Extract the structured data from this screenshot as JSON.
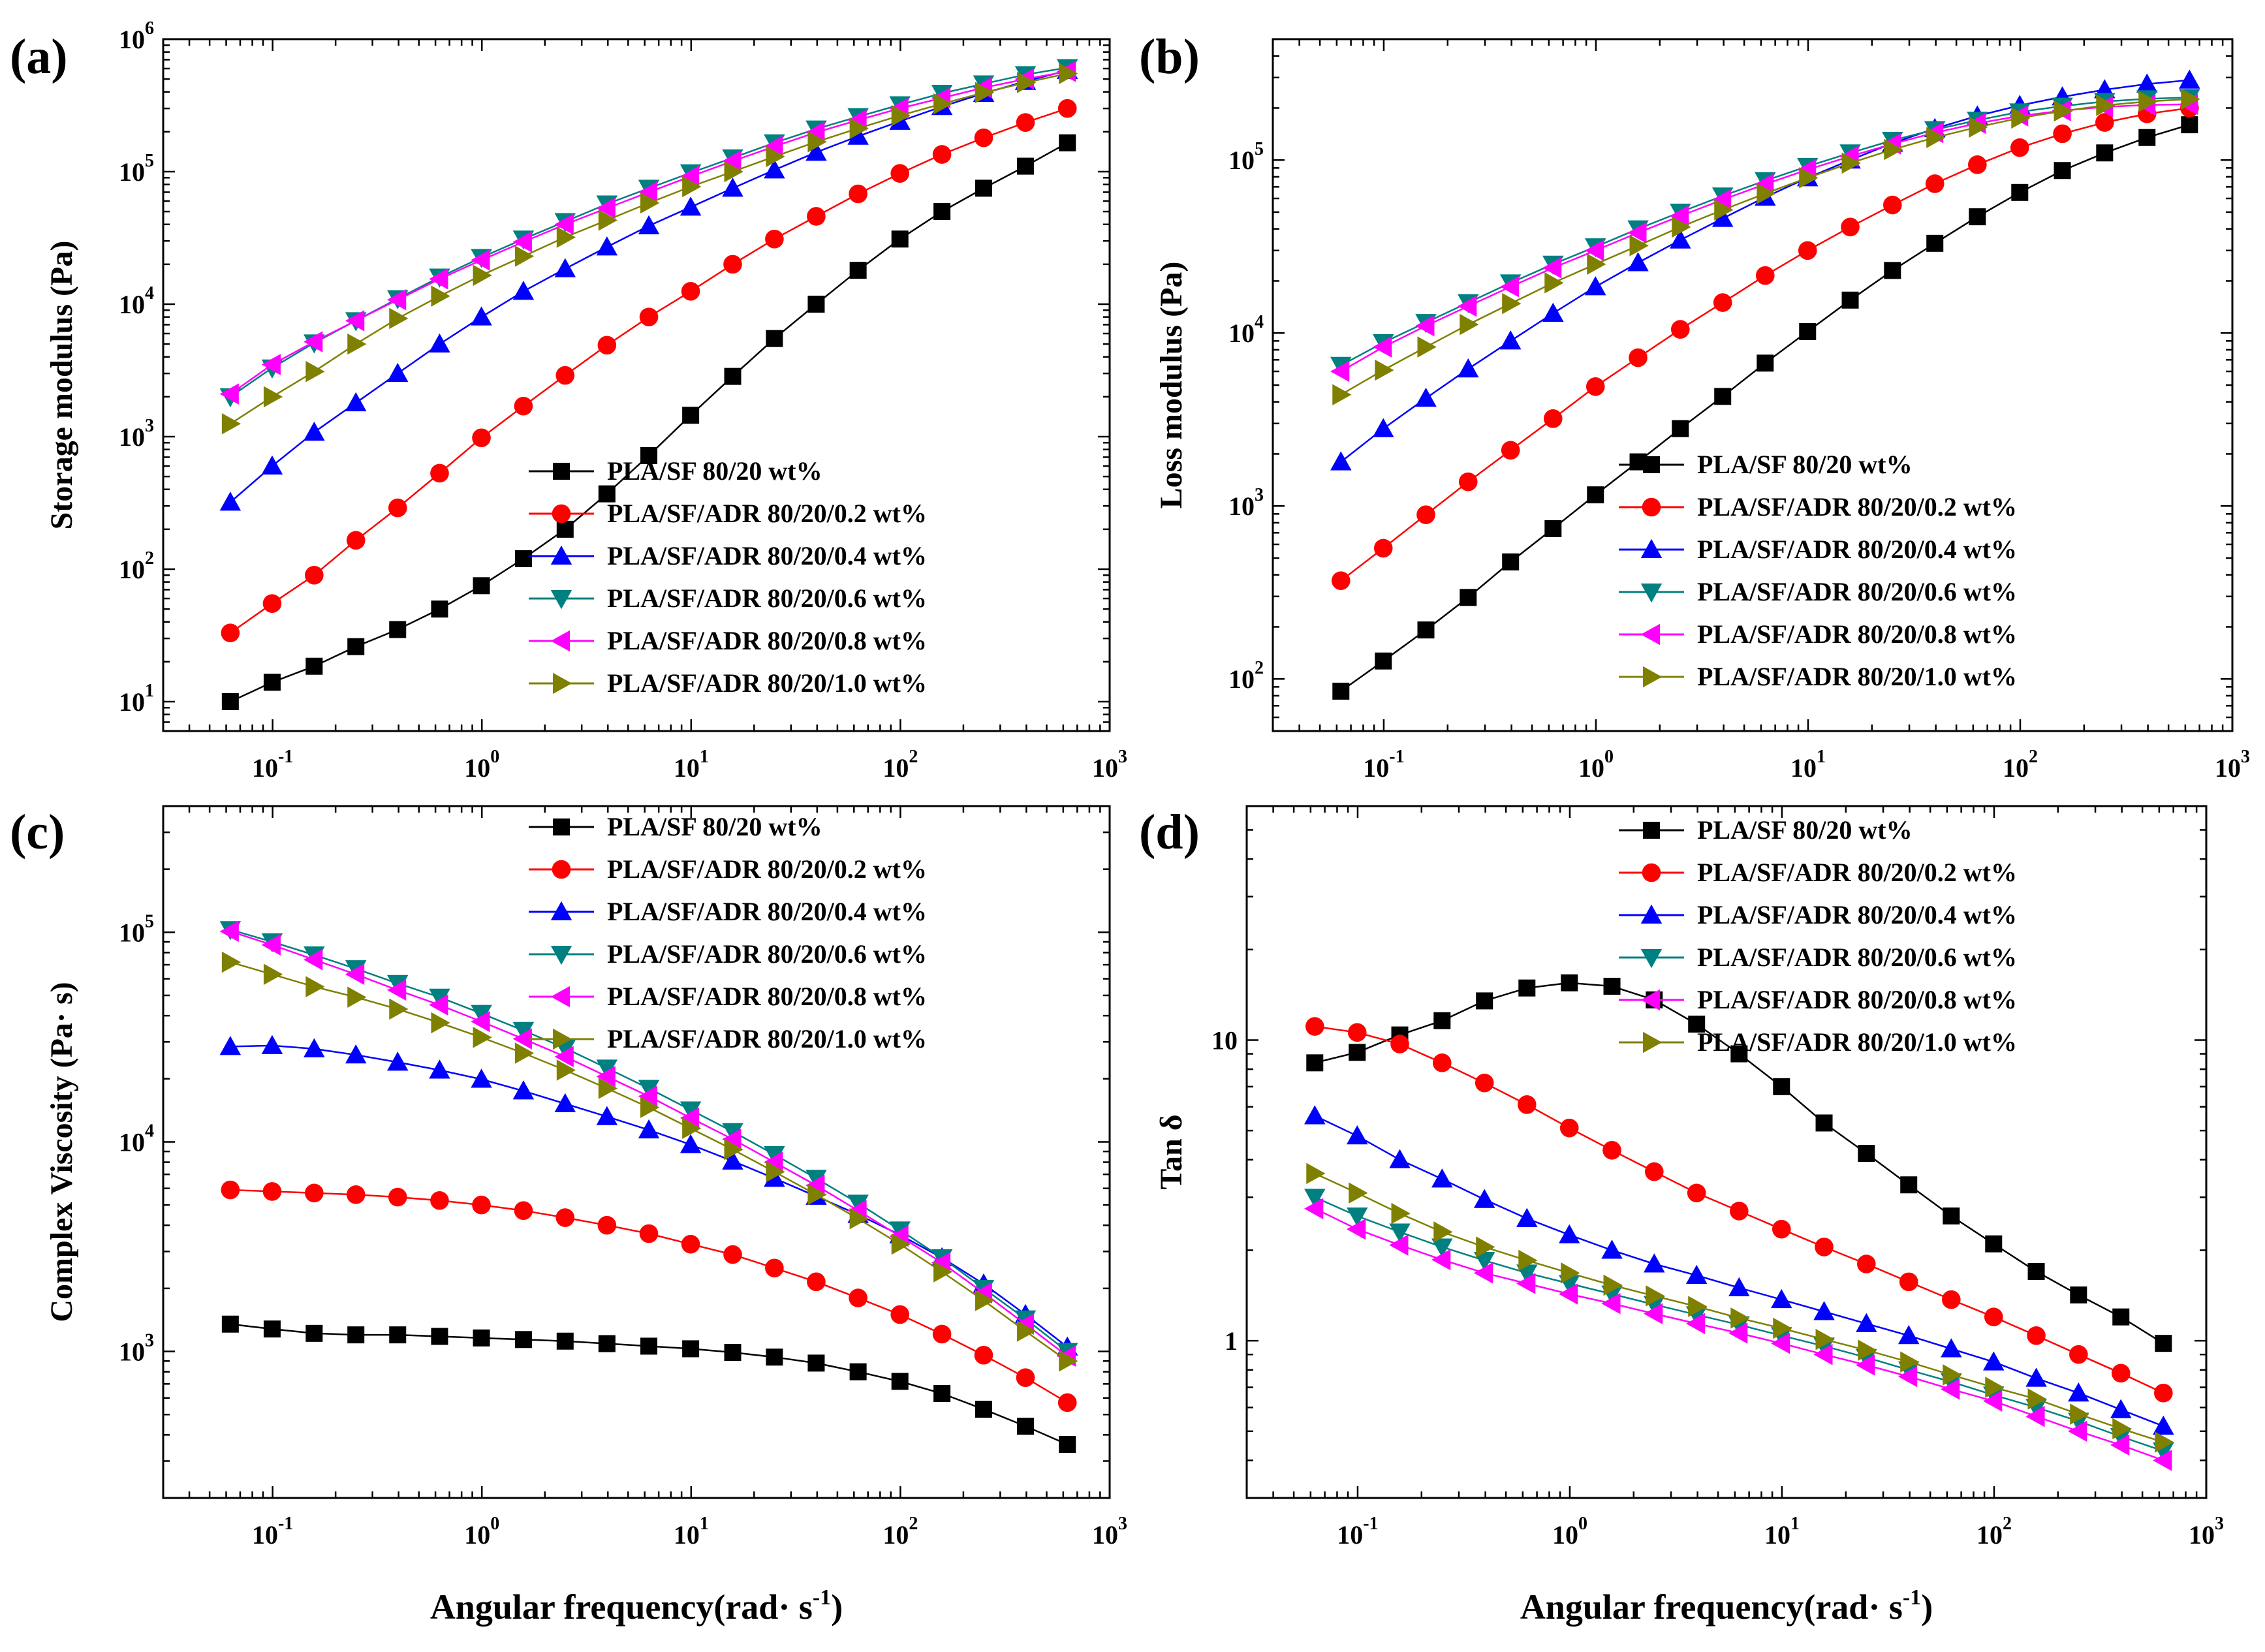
{
  "series_styles": [
    {
      "name": "PLA/SF 80/20 wt%",
      "color": "#000000",
      "marker": "square"
    },
    {
      "name": "PLA/SF/ADR 80/20/0.2 wt%",
      "color": "#ff0000",
      "marker": "circle"
    },
    {
      "name": "PLA/SF/ADR 80/20/0.4 wt%",
      "color": "#0000ff",
      "marker": "triangle-up"
    },
    {
      "name": "PLA/SF/ADR 80/20/0.6 wt%",
      "color": "#008080",
      "marker": "triangle-down"
    },
    {
      "name": "PLA/SF/ADR 80/20/0.8 wt%",
      "color": "#ff00ff",
      "marker": "triangle-left"
    },
    {
      "name": "PLA/SF/ADR 80/20/1.0 wt%",
      "color": "#808000",
      "marker": "triangle-right"
    }
  ],
  "chart_data": [
    {
      "panel": "(a)",
      "type": "line",
      "scale": "log-log",
      "xlabel": "",
      "ylabel": "Storage modulus (Pa)",
      "xlim": [
        0.03,
        1000
      ],
      "ylim": [
        6,
        1000000
      ],
      "x_ticks": [
        "10-1",
        "100",
        "101",
        "102",
        "103"
      ],
      "y_ticks": [
        "101",
        "102",
        "103",
        "104",
        "105",
        "106"
      ],
      "legend_position": "bottom-right",
      "x": [
        0.0628,
        0.0995,
        0.158,
        0.25,
        0.396,
        0.628,
        0.995,
        1.58,
        2.5,
        3.96,
        6.28,
        9.95,
        15.8,
        25,
        39.6,
        62.8,
        99.5,
        158,
        250,
        396,
        628
      ],
      "series": [
        {
          "name": "PLA/SF 80/20 wt%",
          "values": [
            10,
            14,
            18.5,
            26,
            35,
            50,
            75,
            120,
            200,
            370,
            720,
            1450,
            2850,
            5500,
            10000,
            18000,
            31000,
            50000,
            75000,
            110000,
            165000
          ]
        },
        {
          "name": "PLA/SF/ADR 80/20/0.2 wt%",
          "values": [
            33,
            55,
            90,
            165,
            290,
            530,
            980,
            1700,
            2900,
            4900,
            8000,
            12500,
            20000,
            31000,
            46000,
            68000,
            97000,
            135000,
            180000,
            235000,
            300000
          ]
        },
        {
          "name": "PLA/SF/ADR 80/20/0.4 wt%",
          "values": [
            320,
            600,
            1080,
            1800,
            3000,
            5000,
            8000,
            12500,
            18500,
            27000,
            39000,
            54000,
            75000,
            103000,
            140000,
            185000,
            240000,
            310000,
            390000,
            480000,
            580000
          ]
        },
        {
          "name": "PLA/SF/ADR 80/20/0.6 wt%",
          "values": [
            2000,
            3300,
            5100,
            7500,
            11000,
            16000,
            22500,
            31000,
            42000,
            57000,
            75000,
            98000,
            127000,
            165000,
            210000,
            260000,
            320000,
            390000,
            460000,
            540000,
            610000
          ]
        },
        {
          "name": "PLA/SF/ADR 80/20/0.8 wt%",
          "values": [
            2100,
            3500,
            5200,
            7500,
            10800,
            15500,
            21500,
            29500,
            40000,
            53000,
            70000,
            92000,
            120000,
            155000,
            198000,
            245000,
            300000,
            360000,
            430000,
            500000,
            570000
          ]
        },
        {
          "name": "PLA/SF/ADR 80/20/1.0 wt%",
          "values": [
            1250,
            2000,
            3100,
            5000,
            7800,
            11500,
            16500,
            23000,
            32000,
            43000,
            58000,
            77000,
            100000,
            130000,
            168000,
            212000,
            265000,
            325000,
            395000,
            470000,
            550000
          ]
        }
      ]
    },
    {
      "panel": "(b)",
      "type": "line",
      "scale": "log-log",
      "xlabel": "",
      "ylabel": "Loss modulus (Pa)",
      "xlim": [
        0.03,
        1000
      ],
      "ylim": [
        50,
        500000
      ],
      "x_ticks": [
        "10-1",
        "100",
        "101",
        "102",
        "103"
      ],
      "y_ticks": [
        "102",
        "103",
        "104",
        "105"
      ],
      "legend_position": "bottom-right",
      "x": [
        0.0628,
        0.0995,
        0.158,
        0.25,
        0.396,
        0.628,
        0.995,
        1.58,
        2.5,
        3.96,
        6.28,
        9.95,
        15.8,
        25,
        39.6,
        62.8,
        99.5,
        158,
        250,
        396,
        628
      ],
      "series": [
        {
          "name": "PLA/SF 80/20 wt%",
          "values": [
            85,
            127,
            192,
            296,
            475,
            740,
            1160,
            1800,
            2800,
            4300,
            6700,
            10200,
            15500,
            23000,
            33000,
            47000,
            65000,
            87000,
            110000,
            135000,
            160000
          ]
        },
        {
          "name": "PLA/SF/ADR 80/20/0.2 wt%",
          "values": [
            370,
            570,
            890,
            1380,
            2100,
            3200,
            4900,
            7200,
            10500,
            15000,
            21500,
            30000,
            41000,
            55000,
            73000,
            94000,
            118000,
            142000,
            165000,
            185000,
            200000
          ]
        },
        {
          "name": "PLA/SF/ADR 80/20/0.4 wt%",
          "values": [
            1800,
            2800,
            4200,
            6200,
            9000,
            13000,
            18500,
            25500,
            34500,
            46000,
            61000,
            79000,
            100000,
            125000,
            152000,
            180000,
            207000,
            232000,
            255000,
            275000,
            290000
          ]
        },
        {
          "name": "PLA/SF/ADR 80/20/0.6 wt%",
          "values": [
            6500,
            8800,
            11500,
            15000,
            19500,
            25000,
            31500,
            40000,
            50000,
            62000,
            76000,
            92000,
            110000,
            130000,
            150000,
            170000,
            190000,
            205000,
            218000,
            226000,
            230000
          ]
        },
        {
          "name": "PLA/SF/ADR 80/20/0.8 wt%",
          "values": [
            6000,
            8300,
            11000,
            14300,
            18500,
            23800,
            30000,
            38000,
            47500,
            59000,
            72500,
            88000,
            105000,
            124000,
            144000,
            163000,
            180000,
            193000,
            203000,
            208000,
            210000
          ]
        },
        {
          "name": "PLA/SF/ADR 80/20/1.0 wt%",
          "values": [
            4400,
            6100,
            8300,
            11200,
            14800,
            19500,
            25000,
            32000,
            41000,
            51500,
            64000,
            79000,
            96000,
            115000,
            135000,
            155000,
            175000,
            192000,
            207000,
            218000,
            225000
          ]
        }
      ]
    },
    {
      "panel": "(c)",
      "type": "line",
      "scale": "log-log",
      "xlabel": "Angular frequency(rad· s-1)",
      "ylabel": "Complex Viscosity (Pa· s)",
      "xlim": [
        0.03,
        1000
      ],
      "ylim": [
        200,
        400000
      ],
      "x_ticks": [
        "10-1",
        "100",
        "101",
        "102",
        "103"
      ],
      "y_ticks": [
        "103",
        "104",
        "105"
      ],
      "legend_position": "top-right",
      "x": [
        0.0628,
        0.0995,
        0.158,
        0.25,
        0.396,
        0.628,
        0.995,
        1.58,
        2.5,
        3.96,
        6.28,
        9.95,
        15.8,
        25,
        39.6,
        62.8,
        99.5,
        158,
        250,
        396,
        628
      ],
      "series": [
        {
          "name": "PLA/SF 80/20 wt%",
          "values": [
            1350,
            1280,
            1220,
            1200,
            1200,
            1180,
            1160,
            1140,
            1120,
            1090,
            1060,
            1030,
            990,
            940,
            880,
            800,
            720,
            630,
            530,
            440,
            360
          ]
        },
        {
          "name": "PLA/SF/ADR 80/20/0.2 wt%",
          "values": [
            5900,
            5800,
            5700,
            5600,
            5450,
            5250,
            5000,
            4700,
            4350,
            4000,
            3650,
            3250,
            2900,
            2500,
            2150,
            1800,
            1500,
            1210,
            960,
            750,
            570
          ]
        },
        {
          "name": "PLA/SF/ADR 80/20/0.4 wt%",
          "values": [
            28500,
            28800,
            27800,
            26000,
            24000,
            22000,
            19900,
            17500,
            15200,
            13200,
            11400,
            9700,
            8100,
            6700,
            5500,
            4500,
            3600,
            2800,
            2100,
            1500,
            1050
          ]
        },
        {
          "name": "PLA/SF/ADR 80/20/0.6 wt%",
          "values": [
            103000,
            90000,
            78000,
            67000,
            57000,
            49000,
            41000,
            34000,
            28000,
            22500,
            18000,
            14200,
            11200,
            8700,
            6700,
            5100,
            3800,
            2800,
            2000,
            1430,
            1000
          ]
        },
        {
          "name": "PLA/SF/ADR 80/20/0.8 wt%",
          "values": [
            101000,
            87000,
            74000,
            63000,
            53000,
            45000,
            37500,
            31000,
            25500,
            20500,
            16500,
            13000,
            10300,
            8000,
            6200,
            4700,
            3550,
            2650,
            1900,
            1350,
            950
          ]
        },
        {
          "name": "PLA/SF/ADR 80/20/1.0 wt%",
          "values": [
            72000,
            63000,
            55000,
            49000,
            43000,
            37000,
            31500,
            26500,
            22000,
            18000,
            14600,
            11600,
            9200,
            7200,
            5600,
            4300,
            3250,
            2400,
            1750,
            1250,
            900
          ]
        }
      ]
    },
    {
      "panel": "(d)",
      "type": "line",
      "scale": "log-log",
      "xlabel": "Angular frequency(rad· s-1)",
      "ylabel": "Tan δ",
      "xlim": [
        0.03,
        1000
      ],
      "ylim": [
        0.3,
        60
      ],
      "x_ticks": [
        "10-1",
        "100",
        "101",
        "102",
        "103"
      ],
      "y_ticks": [
        "1",
        "10"
      ],
      "legend_position": "top-right",
      "x": [
        0.0628,
        0.0995,
        0.158,
        0.25,
        0.396,
        0.628,
        0.995,
        1.58,
        2.5,
        3.96,
        6.28,
        9.95,
        15.8,
        25,
        39.6,
        62.8,
        99.5,
        158,
        250,
        396,
        628
      ],
      "series": [
        {
          "name": "PLA/SF 80/20 wt%",
          "values": [
            8.4,
            9.1,
            10.4,
            11.6,
            13.5,
            14.9,
            15.5,
            15.1,
            13.6,
            11.3,
            9.0,
            7.0,
            5.3,
            4.2,
            3.3,
            2.6,
            2.1,
            1.7,
            1.42,
            1.2,
            0.98
          ]
        },
        {
          "name": "PLA/SF/ADR 80/20/0.2 wt%",
          "values": [
            11.1,
            10.6,
            9.7,
            8.4,
            7.2,
            6.1,
            5.1,
            4.3,
            3.65,
            3.1,
            2.7,
            2.35,
            2.05,
            1.8,
            1.57,
            1.37,
            1.2,
            1.04,
            0.9,
            0.78,
            0.67
          ]
        },
        {
          "name": "PLA/SF/ADR 80/20/0.4 wt%",
          "values": [
            5.6,
            4.8,
            4.0,
            3.45,
            2.95,
            2.55,
            2.25,
            2.0,
            1.8,
            1.65,
            1.5,
            1.37,
            1.25,
            1.14,
            1.04,
            0.94,
            0.85,
            0.75,
            0.67,
            0.59,
            0.52
          ]
        },
        {
          "name": "PLA/SF/ADR 80/20/0.6 wt%",
          "values": [
            3.0,
            2.6,
            2.3,
            2.05,
            1.85,
            1.68,
            1.55,
            1.43,
            1.32,
            1.22,
            1.13,
            1.04,
            0.96,
            0.88,
            0.8,
            0.73,
            0.66,
            0.6,
            0.54,
            0.48,
            0.43
          ]
        },
        {
          "name": "PLA/SF/ADR 80/20/0.8 wt%",
          "values": [
            2.75,
            2.35,
            2.08,
            1.86,
            1.68,
            1.55,
            1.43,
            1.33,
            1.23,
            1.14,
            1.06,
            0.98,
            0.9,
            0.83,
            0.76,
            0.69,
            0.63,
            0.56,
            0.5,
            0.45,
            0.4
          ]
        },
        {
          "name": "PLA/SF/ADR 80/20/1.0 wt%",
          "values": [
            3.6,
            3.1,
            2.65,
            2.3,
            2.05,
            1.85,
            1.68,
            1.53,
            1.41,
            1.3,
            1.19,
            1.1,
            1.01,
            0.93,
            0.85,
            0.77,
            0.7,
            0.64,
            0.57,
            0.51,
            0.46
          ]
        }
      ]
    }
  ]
}
